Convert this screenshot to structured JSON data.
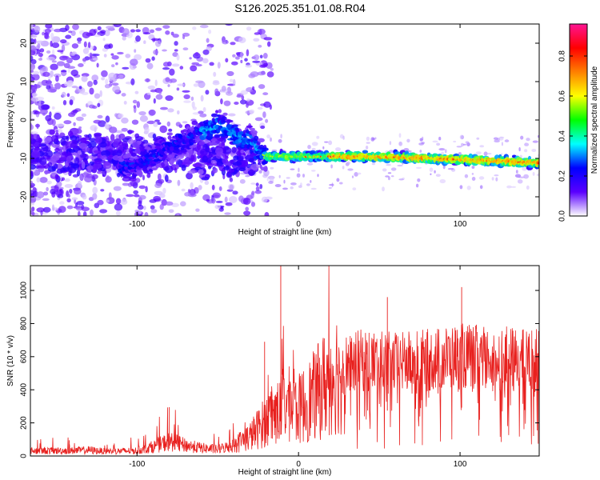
{
  "title": "S126.2025.351.01.08.R04",
  "chart_data": [
    {
      "type": "heatmap",
      "name": "spectrogram",
      "title": "S126.2025.351.01.08.R04",
      "xlabel": "Height of straight line (km)",
      "ylabel": "Frequency (Hz)",
      "xlim": [
        -166,
        149
      ],
      "ylim": [
        -25,
        25
      ],
      "xticks": [
        -100,
        0,
        100
      ],
      "yticks": [
        -20,
        -10,
        0,
        10,
        20
      ],
      "colorbar": {
        "label": "Normalized spectral amplitude",
        "range": [
          0.0,
          0.96
        ],
        "ticks": [
          "0.0",
          "0.2",
          "0.4",
          "0.6",
          "0.8"
        ],
        "tick_values": [
          0.0,
          0.2,
          0.4,
          0.6,
          0.8
        ],
        "colors": [
          "#ffffff",
          "#5a00ff",
          "#0000ff",
          "#00ffff",
          "#00ff00",
          "#ffff00",
          "#ff8000",
          "#ff0000",
          "#ff1493"
        ]
      },
      "ridge": {
        "x": [
          -100,
          -90,
          -80,
          -70,
          -60,
          -50,
          -45,
          -40,
          -35,
          -30,
          -25,
          -20,
          -10,
          0,
          10,
          20,
          40,
          60,
          80,
          100,
          120,
          140,
          149
        ],
        "y": [
          -12,
          -10,
          -7,
          -5,
          -3,
          -1.5,
          -2,
          -4,
          -5,
          -5.5,
          -8,
          -9.5,
          -9.5,
          -9.5,
          -9.5,
          -9.5,
          -9.5,
          -9.7,
          -10,
          -10.3,
          -10.6,
          -11,
          -11.2
        ]
      }
    },
    {
      "type": "line",
      "name": "snr",
      "xlabel": "Height of straight line (km)",
      "ylabel": "SNR (10 * v/v)",
      "xlim": [
        -166,
        149
      ],
      "ylim": [
        0,
        1150
      ],
      "xticks": [
        -100,
        0,
        100
      ],
      "yticks": [
        0,
        200,
        400,
        600,
        800,
        1000
      ],
      "color": "#e8201e",
      "envelope": {
        "x": [
          -166,
          -140,
          -130,
          -120,
          -100,
          -90,
          -80,
          -70,
          -60,
          -50,
          -40,
          -30,
          -20,
          -15,
          -11,
          -10,
          -5,
          0,
          10,
          20,
          30,
          40,
          60,
          80,
          100,
          120,
          140,
          149
        ],
        "y": [
          40,
          40,
          45,
          35,
          40,
          70,
          110,
          80,
          60,
          50,
          80,
          140,
          250,
          300,
          320,
          380,
          360,
          330,
          430,
          560,
          680,
          700,
          680,
          700,
          730,
          720,
          700,
          700
        ]
      },
      "spikes": [
        {
          "x": -142,
          "y": 95
        },
        {
          "x": -80,
          "y": 295
        },
        {
          "x": -21,
          "y": 690
        },
        {
          "x": -11,
          "y": 1150
        },
        {
          "x": 55,
          "y": 960
        },
        {
          "x": 101,
          "y": 1020
        }
      ]
    }
  ]
}
